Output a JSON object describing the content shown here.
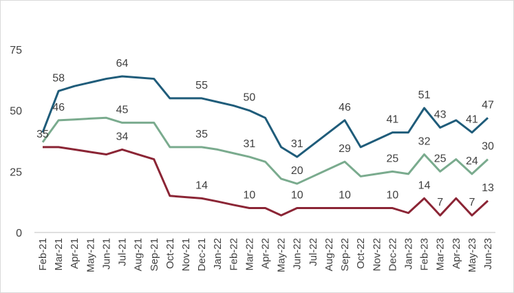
{
  "chart_data": {
    "type": "line",
    "categories": [
      "Feb-21",
      "Mar-21",
      "Apr-21",
      "May-21",
      "Jun-21",
      "Jul-21",
      "Aug-21",
      "Sep-21",
      "Oct-21",
      "Nov-21",
      "Dec-21",
      "Jan-22",
      "Feb-22",
      "Mar-22",
      "Apr-22",
      "May-22",
      "Jun-22",
      "Jul-22",
      "Aug-22",
      "Sep-22",
      "Oct-22",
      "Nov-22",
      "Dec-22",
      "Jan-23",
      "Feb-23",
      "Mar-23",
      "Apr-23",
      "May-23",
      "Jun-23"
    ],
    "series": [
      {
        "color": "#1f5c7a",
        "values": [
          41,
          58,
          60,
          61.5,
          63,
          64,
          63.5,
          63,
          55,
          55,
          55,
          53.5,
          52,
          50,
          47,
          35,
          31,
          36,
          41,
          46,
          35,
          38,
          41,
          41,
          51,
          43,
          46,
          41,
          47
        ],
        "value_labels": [
          null,
          "58",
          null,
          null,
          null,
          "64",
          null,
          null,
          null,
          null,
          "55",
          null,
          null,
          "50",
          null,
          null,
          "31",
          null,
          null,
          "46",
          null,
          null,
          "41",
          null,
          "51",
          "43",
          null,
          "41",
          "47"
        ]
      },
      {
        "color": "#7aab8e",
        "values": [
          37,
          46,
          46.3,
          46.7,
          47,
          45,
          45,
          45,
          35,
          35,
          35,
          34,
          32.5,
          31,
          29,
          22,
          20,
          23,
          26,
          29,
          23,
          24,
          25,
          24,
          32,
          25,
          30,
          24,
          30
        ],
        "value_labels": [
          null,
          "46",
          null,
          null,
          null,
          "45",
          null,
          null,
          null,
          null,
          "35",
          null,
          null,
          "31",
          null,
          null,
          "20",
          null,
          null,
          "29",
          null,
          null,
          "25",
          null,
          "32",
          "25",
          null,
          "24",
          "30"
        ]
      },
      {
        "color": "#8b2535",
        "values": [
          35,
          35,
          34,
          33,
          32,
          34,
          32,
          30,
          15,
          14.5,
          14,
          12.7,
          11.3,
          10,
          10,
          7,
          10,
          10,
          10,
          10,
          10,
          10,
          10,
          8,
          14,
          7,
          14,
          7,
          13
        ],
        "value_labels": [
          "35",
          null,
          null,
          null,
          null,
          "34",
          null,
          null,
          null,
          null,
          "14",
          null,
          null,
          "10",
          null,
          null,
          "10",
          null,
          null,
          "10",
          null,
          null,
          "10",
          null,
          "14",
          "7",
          null,
          "7",
          "13"
        ]
      }
    ],
    "ylim": [
      0,
      75
    ],
    "yticks": [
      0,
      25,
      50,
      75
    ],
    "grid": false
  }
}
